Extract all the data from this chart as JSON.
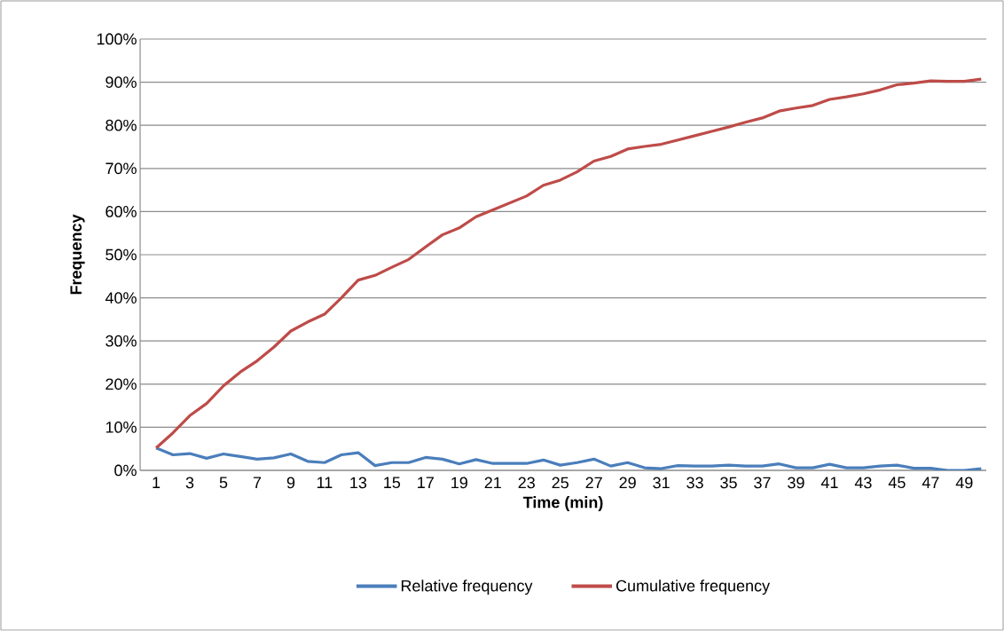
{
  "chart_data": {
    "type": "line",
    "xlabel": "Time (min)",
    "ylabel": "Frequency",
    "categories": [
      "1",
      null,
      "3",
      null,
      "5",
      null,
      "7",
      null,
      "9",
      null,
      "11",
      null,
      "13",
      null,
      "15",
      null,
      "17",
      null,
      "19",
      null,
      "21",
      null,
      "23",
      null,
      "25",
      null,
      "27",
      null,
      "29",
      null,
      "31",
      null,
      "33",
      null,
      "35",
      null,
      "37",
      null,
      "39",
      null,
      "41",
      null,
      "43",
      null,
      "45",
      null,
      "47",
      null,
      "49",
      null
    ],
    "series": [
      {
        "name": "Relative frequency",
        "color": "#4a7ebb",
        "values": [
          5.2,
          3.6,
          3.9,
          2.8,
          3.8,
          3.2,
          2.6,
          2.9,
          3.8,
          2.1,
          1.8,
          3.6,
          4.1,
          1.1,
          1.8,
          1.8,
          3.0,
          2.6,
          1.5,
          2.5,
          1.6,
          1.6,
          1.6,
          2.4,
          1.2,
          1.8,
          2.6,
          1.0,
          1.8,
          0.6,
          0.4,
          1.1,
          1.0,
          1.0,
          1.2,
          1.0,
          1.0,
          1.5,
          0.6,
          0.6,
          1.4,
          0.6,
          0.6,
          1.0,
          1.2,
          0.5,
          0.5,
          0,
          0,
          0.4
        ]
      },
      {
        "name": "Cumulative frequency",
        "color": "#be4b48",
        "values": [
          5.2,
          8.7,
          12.7,
          15.5,
          19.6,
          22.8,
          25.4,
          28.6,
          32.3,
          34.4,
          36.2,
          40,
          44.1,
          45.2,
          47.1,
          48.9,
          51.8,
          54.6,
          56.2,
          58.8,
          60.4,
          62,
          63.6,
          66.1,
          67.3,
          69.2,
          71.7,
          72.8,
          74.5,
          75.1,
          75.6,
          76.6,
          77.6,
          78.6,
          79.6,
          80.7,
          81.7,
          83.3,
          84,
          84.6,
          86,
          86.6,
          87.3,
          88.2,
          89.4,
          89.8,
          90.3,
          90.2,
          90.2,
          90.7
        ]
      }
    ],
    "ylim": [
      0,
      100
    ],
    "yticks": [
      {
        "value": 0,
        "label": "0%"
      },
      {
        "value": 10,
        "label": "10%"
      },
      {
        "value": 20,
        "label": "20%"
      },
      {
        "value": 30,
        "label": "30%"
      },
      {
        "value": 40,
        "label": "40%"
      },
      {
        "value": 50,
        "label": "50%"
      },
      {
        "value": 60,
        "label": "60%"
      },
      {
        "value": 70,
        "label": "70%"
      },
      {
        "value": 80,
        "label": "80%"
      },
      {
        "value": 90,
        "label": "90%"
      },
      {
        "value": 100,
        "label": "100%"
      }
    ],
    "grid": "y",
    "legend": "bottom",
    "marker": "none",
    "line_style": "solid"
  }
}
